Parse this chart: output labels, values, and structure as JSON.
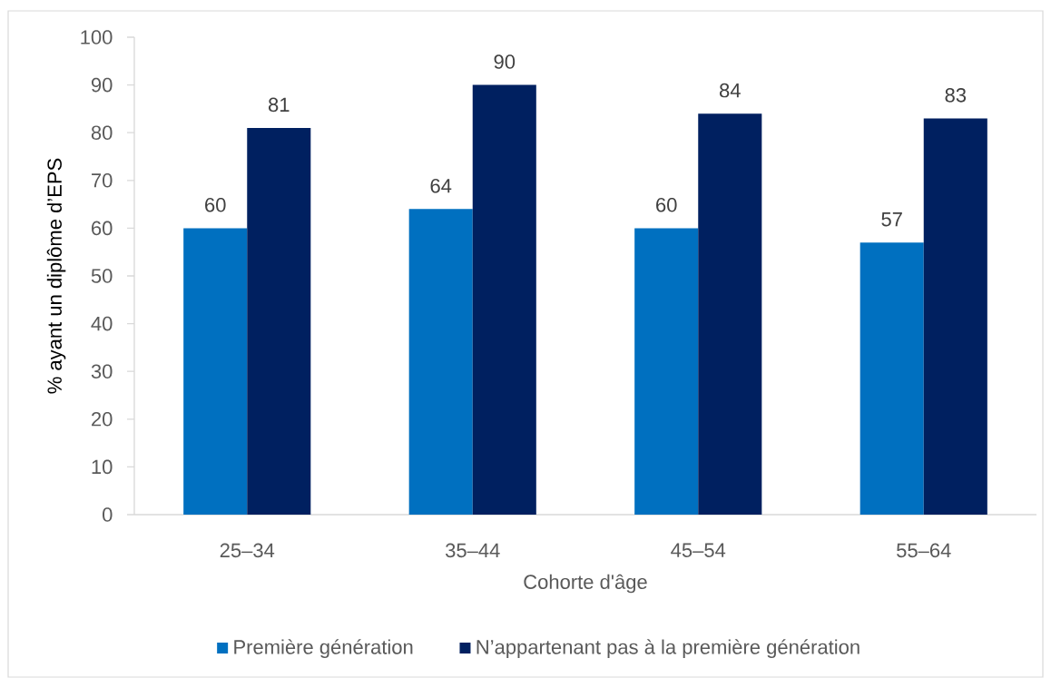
{
  "chart_data": {
    "type": "bar",
    "xlabel": "Cohorte d'âge",
    "ylabel": "% ayant un diplôme d’EPS",
    "categories": [
      "25–34",
      "35–44",
      "45–54",
      "55–64"
    ],
    "series": [
      {
        "name": "Première génération",
        "color": "#0070c0",
        "values": [
          60,
          64,
          60,
          57
        ]
      },
      {
        "name": "N’appartenant pas à la première génération",
        "color": "#002060",
        "values": [
          81,
          90,
          84,
          83
        ]
      }
    ],
    "ylim": [
      0,
      100
    ],
    "yticks": [
      0,
      10,
      20,
      30,
      40,
      50,
      60,
      70,
      80,
      90,
      100
    ],
    "data_labels": true,
    "legend": "bottom",
    "grid": false
  }
}
